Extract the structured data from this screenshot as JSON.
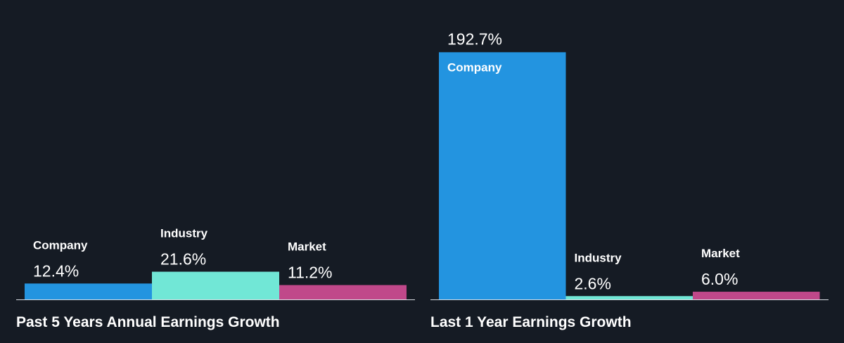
{
  "chart_data": [
    {
      "type": "bar",
      "title": "Past 5 Years Annual Earnings Growth",
      "categories": [
        "Company",
        "Industry",
        "Market"
      ],
      "values": [
        12.4,
        21.6,
        11.2
      ],
      "value_labels": [
        "12.4%",
        "21.6%",
        "11.2%"
      ],
      "colors": [
        "#2394e0",
        "#71e7d6",
        "#c0488a"
      ],
      "ylim": [
        0,
        200
      ],
      "grid": false,
      "legend": "none"
    },
    {
      "type": "bar",
      "title": "Last 1 Year Earnings Growth",
      "categories": [
        "Company",
        "Industry",
        "Market"
      ],
      "values": [
        192.7,
        2.6,
        6.0
      ],
      "value_labels": [
        "192.7%",
        "2.6%",
        "6.0%"
      ],
      "colors": [
        "#2394e0",
        "#71e7d6",
        "#c0488a"
      ],
      "ylim": [
        0,
        200
      ],
      "grid": false,
      "legend": "none"
    }
  ]
}
